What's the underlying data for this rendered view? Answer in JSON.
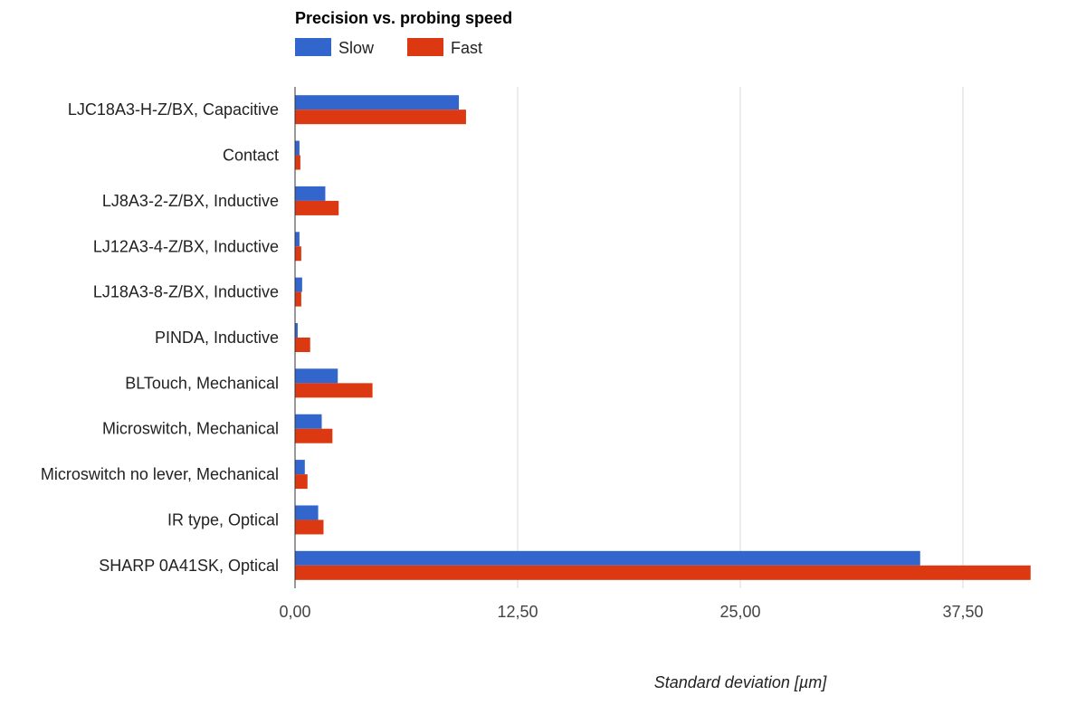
{
  "chart_data": {
    "type": "bar",
    "orientation": "horizontal",
    "title": "Precision vs. probing speed",
    "xlabel": "Standard deviation [µm]",
    "ylabel": "",
    "xlim": [
      0,
      41.25
    ],
    "x_ticks": [
      "0,00",
      "12,50",
      "25,00",
      "37,50"
    ],
    "x_tick_values": [
      0,
      12.5,
      25,
      37.5
    ],
    "grid": true,
    "legend": "top-left",
    "categories": [
      "LJC18A3-H-Z/BX, Capacitive",
      "Contact",
      "LJ8A3-2-Z/BX, Inductive",
      "LJ12A3-4-Z/BX, Inductive",
      "LJ18A3-8-Z/BX, Inductive",
      "PINDA, Inductive",
      "BLTouch, Mechanical",
      "Microswitch, Mechanical",
      "Microswitch no lever, Mechanical",
      "IR type, Optical",
      "SHARP 0A41SK, Optical"
    ],
    "series": [
      {
        "name": "Slow",
        "color": "#3366cc",
        "values": [
          9.2,
          0.25,
          1.7,
          0.25,
          0.4,
          0.15,
          2.4,
          1.5,
          0.55,
          1.3,
          35.1
        ]
      },
      {
        "name": "Fast",
        "color": "#dc3912",
        "values": [
          9.6,
          0.3,
          2.45,
          0.35,
          0.35,
          0.85,
          4.35,
          2.1,
          0.7,
          1.6,
          41.3
        ]
      }
    ]
  }
}
